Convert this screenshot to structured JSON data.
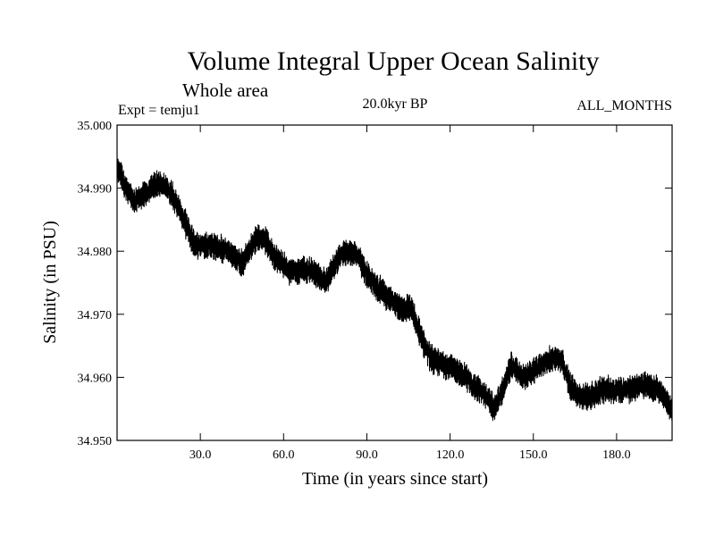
{
  "chart_data": {
    "type": "line",
    "title": "Volume Integral Upper Ocean Salinity",
    "subtitle": "Whole area",
    "expt_label": "Expt = temju1",
    "period_label": "20.0kyr BP",
    "months_label": "ALL_MONTHS",
    "xlabel": "Time (in years since start)",
    "ylabel": "Salinity (in PSU)",
    "xlim": [
      0,
      200
    ],
    "ylim": [
      34.95,
      35.0
    ],
    "x_ticks": [
      30,
      60,
      90,
      120,
      150,
      180
    ],
    "x_tick_labels": [
      "30.0",
      "60.0",
      "90.0",
      "120.0",
      "150.0",
      "180.0"
    ],
    "y_ticks": [
      34.95,
      34.96,
      34.97,
      34.98,
      34.99,
      35.0
    ],
    "y_tick_labels": [
      "34.950",
      "34.960",
      "34.970",
      "34.980",
      "34.990",
      "35.000"
    ],
    "series": [
      {
        "name": "salinity",
        "color": "#000000",
        "noise_amplitude": 0.0022,
        "trend": {
          "x": [
            0,
            1,
            3,
            6,
            10,
            15,
            20,
            24,
            28,
            33,
            40,
            45,
            50,
            53,
            57,
            62,
            70,
            75,
            80,
            84,
            87,
            89,
            92,
            97,
            102,
            106,
            109,
            113,
            118,
            123,
            128,
            133,
            136,
            139,
            142,
            146,
            150,
            153,
            157,
            160,
            163,
            166,
            170,
            175,
            180,
            185,
            190,
            195,
            198,
            200
          ],
          "values": [
            34.9925,
            34.993,
            34.99,
            34.988,
            34.989,
            34.991,
            34.989,
            34.985,
            34.981,
            34.981,
            34.98,
            34.978,
            34.982,
            34.982,
            34.979,
            34.977,
            34.977,
            34.975,
            34.979,
            34.98,
            34.979,
            34.977,
            34.975,
            34.973,
            34.971,
            34.971,
            34.967,
            34.963,
            34.962,
            34.961,
            34.959,
            34.957,
            34.955,
            34.958,
            34.962,
            34.96,
            34.961,
            34.962,
            34.963,
            34.963,
            34.959,
            34.957,
            34.957,
            34.958,
            34.958,
            34.958,
            34.959,
            34.958,
            34.956,
            34.955
          ]
        }
      }
    ]
  }
}
